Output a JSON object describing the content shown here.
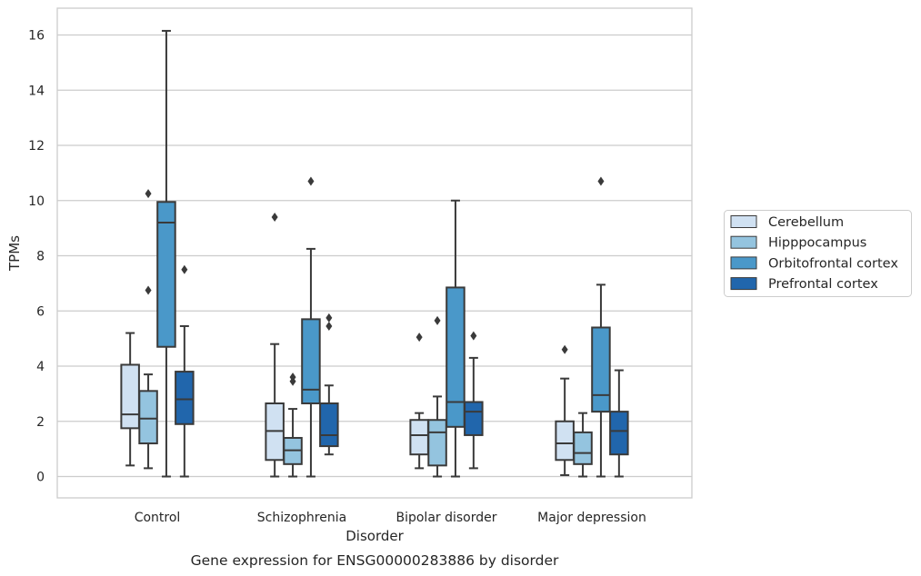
{
  "chart_data": {
    "type": "box",
    "caption": "Gene expression for ENSG00000283886 by disorder",
    "xlabel": "Disorder",
    "ylabel": "TPMs",
    "ylim": [
      -0.8,
      17
    ],
    "yticks": [
      0,
      2,
      4,
      6,
      8,
      10,
      12,
      14,
      16
    ],
    "grid": true,
    "legend_position": "right",
    "categories": [
      "Control",
      "Schizophrenia",
      "Bipolar disorder",
      "Major depression"
    ],
    "series": [
      {
        "name": "Cerebellum",
        "color": "#d0e1f2",
        "boxes": [
          {
            "q1": 1.75,
            "median": 2.25,
            "q3": 4.05,
            "whisker_low": 0.4,
            "whisker_high": 5.2,
            "outliers": []
          },
          {
            "q1": 0.6,
            "median": 1.65,
            "q3": 2.65,
            "whisker_low": 0.0,
            "whisker_high": 4.8,
            "outliers": [
              9.4
            ]
          },
          {
            "q1": 0.8,
            "median": 1.5,
            "q3": 2.05,
            "whisker_low": 0.3,
            "whisker_high": 2.3,
            "outliers": [
              5.05
            ]
          },
          {
            "q1": 0.6,
            "median": 1.2,
            "q3": 2.0,
            "whisker_low": 0.05,
            "whisker_high": 3.55,
            "outliers": [
              4.6
            ]
          }
        ]
      },
      {
        "name": "Hipppocampus",
        "color": "#94c4df",
        "boxes": [
          {
            "q1": 1.2,
            "median": 2.1,
            "q3": 3.1,
            "whisker_low": 0.3,
            "whisker_high": 3.7,
            "outliers": [
              10.25,
              6.75
            ]
          },
          {
            "q1": 0.45,
            "median": 0.95,
            "q3": 1.4,
            "whisker_low": 0.0,
            "whisker_high": 2.45,
            "outliers": [
              3.6,
              3.45
            ]
          },
          {
            "q1": 0.4,
            "median": 1.6,
            "q3": 2.05,
            "whisker_low": 0.0,
            "whisker_high": 2.9,
            "outliers": [
              5.65
            ]
          },
          {
            "q1": 0.45,
            "median": 0.85,
            "q3": 1.6,
            "whisker_low": 0.0,
            "whisker_high": 2.3,
            "outliers": []
          }
        ]
      },
      {
        "name": "Orbitofrontal cortex",
        "color": "#4a98c9",
        "boxes": [
          {
            "q1": 4.7,
            "median": 9.2,
            "q3": 9.95,
            "whisker_low": 0.0,
            "whisker_high": 16.15,
            "outliers": []
          },
          {
            "q1": 2.65,
            "median": 3.15,
            "q3": 5.7,
            "whisker_low": 0.0,
            "whisker_high": 8.25,
            "outliers": [
              10.7
            ]
          },
          {
            "q1": 1.8,
            "median": 2.7,
            "q3": 6.85,
            "whisker_low": 0.0,
            "whisker_high": 10.0,
            "outliers": []
          },
          {
            "q1": 2.35,
            "median": 2.95,
            "q3": 5.4,
            "whisker_low": 0.0,
            "whisker_high": 6.95,
            "outliers": [
              10.7
            ]
          }
        ]
      },
      {
        "name": "Prefrontal cortex",
        "color": "#2166ac",
        "boxes": [
          {
            "q1": 1.9,
            "median": 2.8,
            "q3": 3.8,
            "whisker_low": 0.0,
            "whisker_high": 5.45,
            "outliers": [
              7.5
            ]
          },
          {
            "q1": 1.1,
            "median": 1.5,
            "q3": 2.65,
            "whisker_low": 0.8,
            "whisker_high": 3.3,
            "outliers": [
              5.75,
              5.45
            ]
          },
          {
            "q1": 1.5,
            "median": 2.35,
            "q3": 2.7,
            "whisker_low": 0.3,
            "whisker_high": 4.3,
            "outliers": [
              5.1
            ]
          },
          {
            "q1": 0.8,
            "median": 1.65,
            "q3": 2.35,
            "whisker_low": 0.0,
            "whisker_high": 3.85,
            "outliers": []
          }
        ]
      }
    ]
  }
}
